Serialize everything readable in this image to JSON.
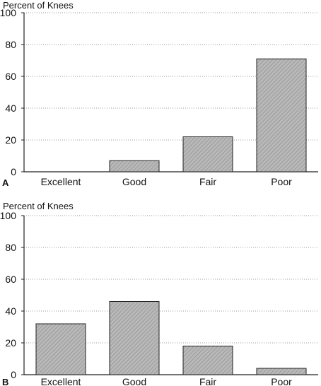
{
  "chart_data": [
    {
      "type": "bar",
      "panel_label": "A",
      "ylabel": "Percent of Knees",
      "categories": [
        "Excellent",
        "Good",
        "Fair",
        "Poor"
      ],
      "values": [
        0,
        7,
        22,
        71
      ],
      "yticks": [
        0,
        20,
        40,
        60,
        80,
        100
      ],
      "ylim": [
        0,
        100
      ],
      "grid": true
    },
    {
      "type": "bar",
      "panel_label": "B",
      "ylabel": "Percent of Knees",
      "categories": [
        "Excellent",
        "Good",
        "Fair",
        "Poor"
      ],
      "values": [
        32,
        46,
        18,
        4
      ],
      "yticks": [
        0,
        20,
        40,
        60,
        80,
        100
      ],
      "ylim": [
        0,
        100
      ],
      "grid": true
    }
  ],
  "colors": {
    "bar_fill": "#b5b5b5",
    "bar_stroke": "#222222",
    "grid": "#9a9a9a",
    "axis": "#222222"
  }
}
